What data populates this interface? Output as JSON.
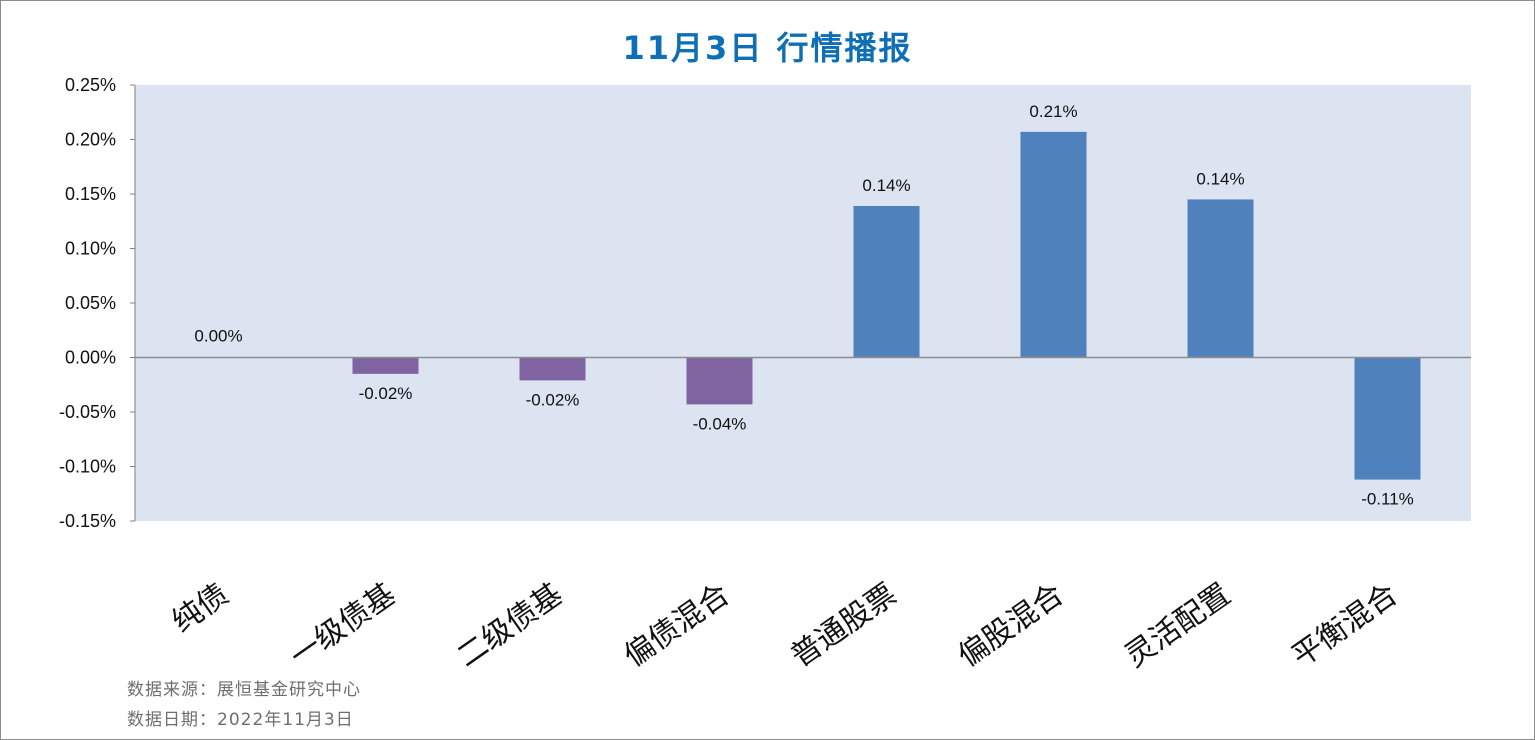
{
  "title": "11月3日 行情播报",
  "footer": {
    "source": "数据来源：展恒基金研究中心",
    "date": "数据日期：2022年11月3日"
  },
  "colors": {
    "plot_bg": "#dbe4f0",
    "negative_bond": "#8064a2",
    "equity": "#4f81bd",
    "title": "#0f6fb6"
  },
  "chart_data": {
    "type": "bar",
    "title": "11月3日 行情播报",
    "categories": [
      "纯债",
      "一级债基",
      "二级债基",
      "偏债混合",
      "普通股票",
      "偏股混合",
      "灵活配置",
      "平衡混合"
    ],
    "values": [
      0.0,
      -0.015,
      -0.021,
      -0.043,
      0.139,
      0.207,
      0.145,
      -0.112
    ],
    "data_labels": [
      "0.00%",
      "-0.02%",
      "-0.02%",
      "-0.04%",
      "0.14%",
      "0.21%",
      "0.14%",
      "-0.11%"
    ],
    "bar_colors": [
      "#8064a2",
      "#8064a2",
      "#8064a2",
      "#8064a2",
      "#4f81bd",
      "#4f81bd",
      "#4f81bd",
      "#4f81bd"
    ],
    "ylim": [
      -0.15,
      0.25
    ],
    "yticks": [
      0.25,
      0.2,
      0.15,
      0.1,
      0.05,
      0.0,
      -0.05,
      -0.1,
      -0.15
    ],
    "ytick_labels": [
      "0.25%",
      "0.20%",
      "0.15%",
      "0.10%",
      "0.05%",
      "0.00%",
      "-0.05%",
      "-0.10%",
      "-0.15%"
    ],
    "xlabel": "",
    "ylabel": "",
    "grid": false,
    "legend": "none"
  }
}
